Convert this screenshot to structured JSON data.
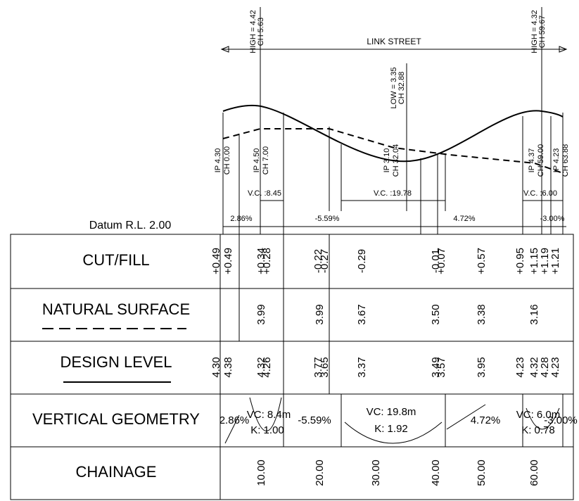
{
  "title": "LINK STREET",
  "datum": "Datum R.L. 2.00",
  "top_labels": [
    [
      "HIGH = 4.42",
      "CH 5.63"
    ],
    [
      "LOW = 3.35",
      "CH 32.88"
    ],
    [
      "HIGH = 4.32",
      "CH 59.67"
    ]
  ],
  "ip_labels": [
    [
      "IP 4.30",
      "CH 0.00"
    ],
    [
      "IP 4.50",
      "CH 7.00"
    ],
    [
      "IP 3.10",
      "CH 32.04"
    ],
    [
      "IP 4.37",
      "CH 59.00"
    ],
    [
      "IP 4.23",
      "CH 63.88"
    ]
  ],
  "vc_labels": [
    "V.C. :8.45",
    "V.C. :19.78",
    "V.C. :6.00"
  ],
  "grades": [
    "2.86%",
    "-5.59%",
    "4.72%",
    "-3.00%"
  ],
  "rows": {
    "cut_fill": {
      "label": "CUT/FILL",
      "values": [
        "+0.49",
        "+0.49",
        "+0.34",
        "+0.28",
        "-0.22",
        "-0.27",
        "-0.29",
        "-0.01",
        "+0.07",
        "+0.57",
        "+0.95",
        "+1.15",
        "+1.19",
        "+1.21"
      ]
    },
    "natural_surface": {
      "label": "NATURAL SURFACE",
      "values": [
        "3.99",
        "3.99",
        "3.67",
        "3.50",
        "3.38",
        "3.16"
      ]
    },
    "design_level": {
      "label": "DESIGN LEVEL",
      "values": [
        "4.30",
        "4.38",
        "4.32",
        "4.26",
        "3.77",
        "3.65",
        "3.37",
        "3.49",
        "3.57",
        "3.95",
        "4.23",
        "4.32",
        "4.28",
        "4.23"
      ]
    },
    "vertical_geometry": {
      "label": "VERTICAL GEOMETRY",
      "values": [
        "2.86%",
        "VC: 8.4m",
        "K: 1.00",
        "-5.59%",
        "VC: 19.8m",
        "K: 1.92",
        "4.72%",
        "VC: 6.0m",
        "K: 0.78",
        "-3.00%"
      ]
    },
    "chainage": {
      "label": "CHAINAGE",
      "values": [
        "10.00",
        "20.00",
        "30.00",
        "40.00",
        "50.00",
        "60.00"
      ]
    }
  }
}
